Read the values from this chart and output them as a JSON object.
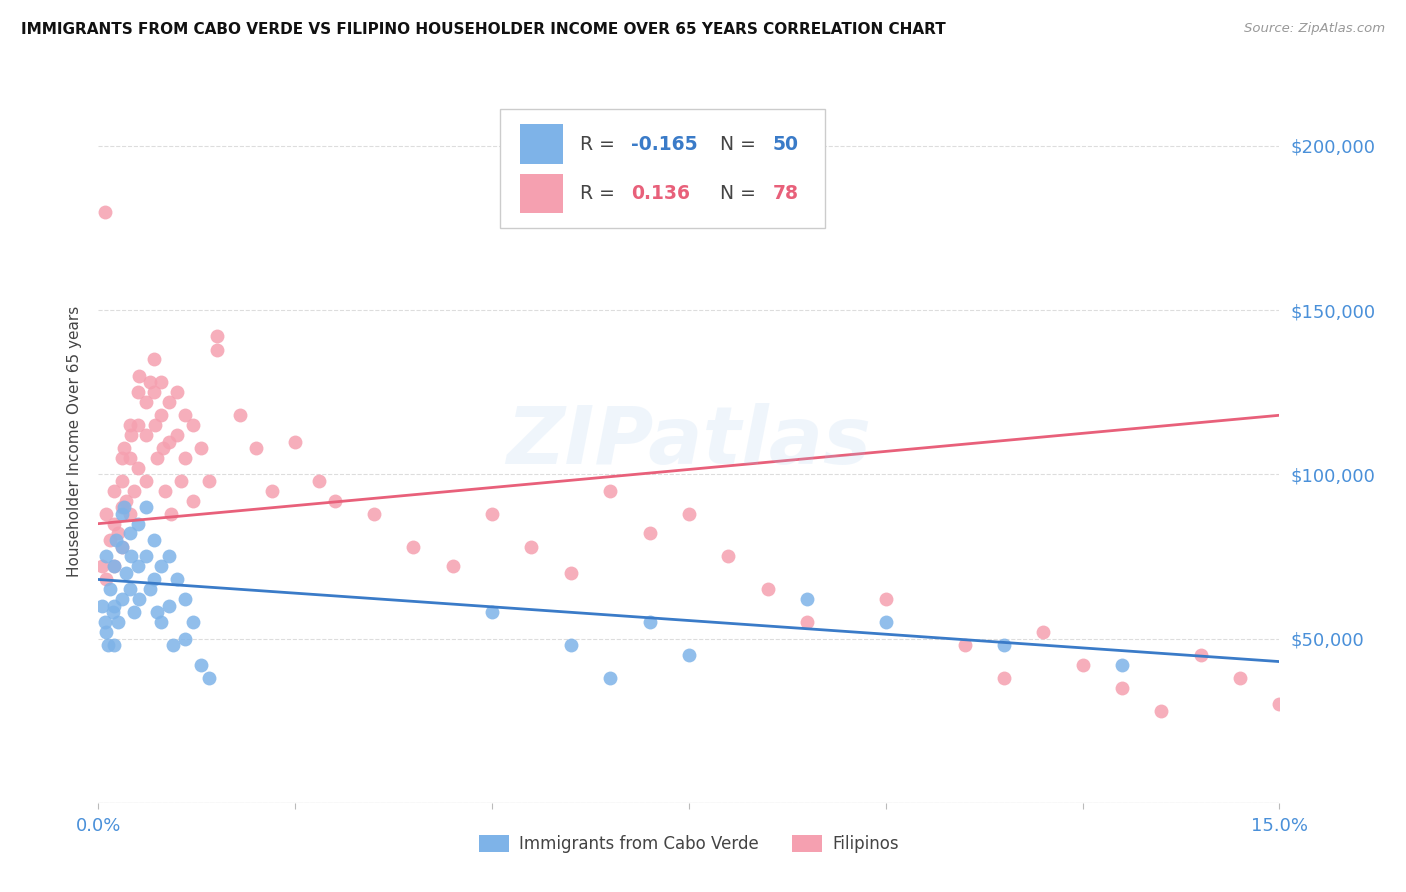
{
  "title": "IMMIGRANTS FROM CABO VERDE VS FILIPINO HOUSEHOLDER INCOME OVER 65 YEARS CORRELATION CHART",
  "source": "Source: ZipAtlas.com",
  "ylabel": "Householder Income Over 65 years",
  "xlim": [
    0.0,
    0.15
  ],
  "ylim": [
    0,
    220000
  ],
  "yticks": [
    0,
    50000,
    100000,
    150000,
    200000
  ],
  "xticks": [
    0.0,
    0.025,
    0.05,
    0.075,
    0.1,
    0.125,
    0.15
  ],
  "color_blue": "#7EB3E8",
  "color_pink": "#F5A0B0",
  "color_trendline_blue": "#3A7BC8",
  "color_trendline_pink": "#E8607A",
  "color_axis_labels": "#4A90D9",
  "watermark": "ZIPatlas",
  "cabo_verde_trend": [
    68000,
    43000
  ],
  "filipino_trend": [
    85000,
    118000
  ],
  "cabo_verde_x": [
    0.0005,
    0.0008,
    0.001,
    0.001,
    0.0012,
    0.0015,
    0.0018,
    0.002,
    0.002,
    0.002,
    0.0022,
    0.0025,
    0.003,
    0.003,
    0.003,
    0.0032,
    0.0035,
    0.004,
    0.004,
    0.0042,
    0.0045,
    0.005,
    0.005,
    0.0052,
    0.006,
    0.006,
    0.0065,
    0.007,
    0.007,
    0.0075,
    0.008,
    0.008,
    0.009,
    0.009,
    0.0095,
    0.01,
    0.011,
    0.011,
    0.012,
    0.013,
    0.014,
    0.05,
    0.06,
    0.065,
    0.07,
    0.075,
    0.09,
    0.1,
    0.115,
    0.13
  ],
  "cabo_verde_y": [
    60000,
    55000,
    52000,
    75000,
    48000,
    65000,
    58000,
    72000,
    60000,
    48000,
    80000,
    55000,
    88000,
    78000,
    62000,
    90000,
    70000,
    82000,
    65000,
    75000,
    58000,
    85000,
    72000,
    62000,
    90000,
    75000,
    65000,
    80000,
    68000,
    58000,
    72000,
    55000,
    75000,
    60000,
    48000,
    68000,
    62000,
    50000,
    55000,
    42000,
    38000,
    58000,
    48000,
    38000,
    55000,
    45000,
    62000,
    55000,
    48000,
    42000
  ],
  "filipino_x": [
    0.0005,
    0.001,
    0.001,
    0.0015,
    0.002,
    0.002,
    0.002,
    0.0025,
    0.003,
    0.003,
    0.003,
    0.003,
    0.0032,
    0.0035,
    0.004,
    0.004,
    0.004,
    0.0042,
    0.0045,
    0.005,
    0.005,
    0.005,
    0.0052,
    0.006,
    0.006,
    0.006,
    0.0065,
    0.007,
    0.007,
    0.0072,
    0.0075,
    0.008,
    0.008,
    0.0082,
    0.0085,
    0.009,
    0.009,
    0.0092,
    0.01,
    0.01,
    0.0105,
    0.011,
    0.011,
    0.012,
    0.012,
    0.013,
    0.014,
    0.015,
    0.015,
    0.018,
    0.02,
    0.022,
    0.025,
    0.028,
    0.03,
    0.035,
    0.04,
    0.045,
    0.05,
    0.055,
    0.06,
    0.065,
    0.07,
    0.075,
    0.08,
    0.085,
    0.09,
    0.1,
    0.11,
    0.115,
    0.12,
    0.125,
    0.13,
    0.135,
    0.14,
    0.145,
    0.15,
    0.0008
  ],
  "filipino_y": [
    72000,
    88000,
    68000,
    80000,
    95000,
    85000,
    72000,
    82000,
    105000,
    98000,
    90000,
    78000,
    108000,
    92000,
    115000,
    105000,
    88000,
    112000,
    95000,
    125000,
    115000,
    102000,
    130000,
    122000,
    112000,
    98000,
    128000,
    135000,
    125000,
    115000,
    105000,
    128000,
    118000,
    108000,
    95000,
    122000,
    110000,
    88000,
    125000,
    112000,
    98000,
    118000,
    105000,
    115000,
    92000,
    108000,
    98000,
    142000,
    138000,
    118000,
    108000,
    95000,
    110000,
    98000,
    92000,
    88000,
    78000,
    72000,
    88000,
    78000,
    70000,
    95000,
    82000,
    88000,
    75000,
    65000,
    55000,
    62000,
    48000,
    38000,
    52000,
    42000,
    35000,
    28000,
    45000,
    38000,
    30000,
    180000
  ],
  "background_color": "#FFFFFF",
  "grid_color": "#DDDDDD"
}
